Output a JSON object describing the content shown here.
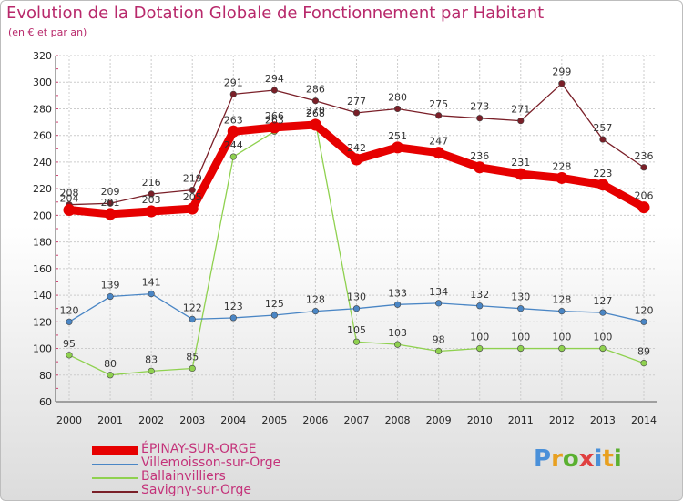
{
  "header": {
    "title": "Evolution de la Dotation Globale de Fonctionnement par Habitant",
    "subtitle": "(en € et par an)"
  },
  "logo": {
    "letters": [
      "P",
      "r",
      "o",
      "x",
      "i",
      "t",
      "i"
    ],
    "colors": [
      "#4a90d9",
      "#e8a020",
      "#5ab030",
      "#e04040",
      "#4a90d9",
      "#e8a020",
      "#5ab030"
    ]
  },
  "chart_data": {
    "type": "line",
    "title": "Evolution de la Dotation Globale de Fonctionnement par Habitant",
    "subtitle": "(en € et par an)",
    "xlabel": "",
    "ylabel": "",
    "x": [
      "2000",
      "2001",
      "2002",
      "2003",
      "2004",
      "2005",
      "2006",
      "2007",
      "2008",
      "2009",
      "2010",
      "2011",
      "2012",
      "2013",
      "2014"
    ],
    "ylim": [
      60,
      320
    ],
    "yticks": [
      60,
      80,
      100,
      120,
      140,
      160,
      180,
      200,
      220,
      240,
      260,
      280,
      300,
      320
    ],
    "legend_position": "bottom-left",
    "series": [
      {
        "name": "Savigny-sur-Orge",
        "color": "#7a1f28",
        "values": [
          208,
          209,
          216,
          219,
          291,
          294,
          286,
          277,
          280,
          275,
          273,
          271,
          299,
          257,
          236
        ]
      },
      {
        "name": "Ballainvilliers",
        "color": "#8fd14f",
        "values": [
          95,
          80,
          83,
          85,
          244,
          263,
          270,
          105,
          103,
          98,
          100,
          100,
          100,
          100,
          89
        ]
      },
      {
        "name": "Villemoisson-sur-Orge",
        "color": "#4a86c5",
        "values": [
          120,
          139,
          141,
          122,
          123,
          125,
          128,
          130,
          133,
          134,
          132,
          130,
          128,
          127,
          120
        ]
      },
      {
        "name": "ÉPINAY-SUR-ORGE",
        "color": "#e60000",
        "values": [
          204,
          201,
          203,
          205,
          263,
          266,
          268,
          242,
          251,
          247,
          236,
          231,
          228,
          223,
          206
        ]
      }
    ],
    "legend": [
      "ÉPINAY-SUR-ORGE",
      "Villemoisson-sur-Orge",
      "Ballainvilliers",
      "Savigny-sur-Orge"
    ]
  }
}
